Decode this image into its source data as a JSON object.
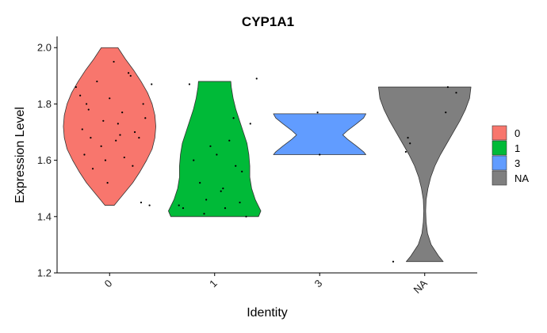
{
  "chart_data": {
    "type": "violin",
    "title": "CYP1A1",
    "xlabel": "Identity",
    "ylabel": "Expression Level",
    "ylim": [
      1.2,
      2.04
    ],
    "yticks": [
      1.2,
      1.4,
      1.6,
      1.8,
      2.0
    ],
    "ytick_labels": [
      "1.2",
      "1.4",
      "1.6",
      "1.8",
      "2.0"
    ],
    "grid": false,
    "legend_position": "right",
    "categories": [
      "0",
      "1",
      "3",
      "NA"
    ],
    "groups": [
      {
        "label": "0",
        "color": "#F8766D",
        "min": 1.44,
        "max": 2.0,
        "profile": [
          [
            1.44,
            0.1
          ],
          [
            1.48,
            0.3
          ],
          [
            1.52,
            0.5
          ],
          [
            1.56,
            0.66
          ],
          [
            1.6,
            0.8
          ],
          [
            1.64,
            0.92
          ],
          [
            1.68,
            0.98
          ],
          [
            1.72,
            1.0
          ],
          [
            1.76,
            0.98
          ],
          [
            1.8,
            0.92
          ],
          [
            1.84,
            0.82
          ],
          [
            1.88,
            0.68
          ],
          [
            1.92,
            0.52
          ],
          [
            1.96,
            0.34
          ],
          [
            2.0,
            0.18
          ]
        ],
        "points": [
          [
            -0.02,
            1.52
          ],
          [
            0.3,
            1.45
          ],
          [
            -0.24,
            1.62
          ],
          [
            0.38,
            1.44
          ],
          [
            -0.16,
            1.57
          ],
          [
            -0.06,
            1.74
          ],
          [
            0.24,
            1.7
          ],
          [
            -0.28,
            1.83
          ],
          [
            0.04,
            1.95
          ],
          [
            0.18,
            1.91
          ],
          [
            -0.2,
            1.78
          ],
          [
            0.28,
            1.68
          ],
          [
            0.08,
            1.73
          ],
          [
            0.14,
            1.61
          ],
          [
            -0.32,
            1.86
          ],
          [
            0.4,
            1.87
          ],
          [
            -0.12,
            1.88
          ],
          [
            0.34,
            1.75
          ],
          [
            -0.04,
            1.6
          ],
          [
            0.22,
            1.58
          ],
          [
            -0.18,
            1.68
          ],
          [
            0.06,
            1.67
          ],
          [
            0.32,
            1.8
          ],
          [
            0.0,
            1.82
          ],
          [
            -0.26,
            1.71
          ],
          [
            0.12,
            1.77
          ],
          [
            0.2,
            1.9
          ],
          [
            -0.08,
            1.65
          ],
          [
            0.1,
            1.69
          ],
          [
            -0.22,
            1.8
          ]
        ]
      },
      {
        "label": "1",
        "color": "#00BA38",
        "min": 1.4,
        "max": 1.88,
        "profile": [
          [
            1.4,
            0.95
          ],
          [
            1.42,
            1.0
          ],
          [
            1.46,
            0.88
          ],
          [
            1.5,
            0.8
          ],
          [
            1.54,
            0.76
          ],
          [
            1.58,
            0.76
          ],
          [
            1.62,
            0.74
          ],
          [
            1.66,
            0.7
          ],
          [
            1.7,
            0.62
          ],
          [
            1.74,
            0.54
          ],
          [
            1.78,
            0.46
          ],
          [
            1.82,
            0.4
          ],
          [
            1.86,
            0.36
          ],
          [
            1.88,
            0.35
          ]
        ],
        "points": [
          [
            0.3,
            1.4
          ],
          [
            -0.08,
            1.46
          ],
          [
            0.06,
            1.49
          ],
          [
            0.24,
            1.45
          ],
          [
            -0.3,
            1.43
          ],
          [
            0.1,
            1.43
          ],
          [
            -0.14,
            1.52
          ],
          [
            0.34,
            1.73
          ],
          [
            0.18,
            1.75
          ],
          [
            -0.2,
            1.6
          ],
          [
            0.02,
            1.62
          ],
          [
            -0.04,
            1.65
          ],
          [
            0.14,
            1.67
          ],
          [
            0.4,
            1.89
          ],
          [
            -0.24,
            1.87
          ],
          [
            0.26,
            1.56
          ],
          [
            -0.1,
            1.41
          ],
          [
            0.08,
            1.5
          ],
          [
            0.2,
            1.58
          ],
          [
            -0.34,
            1.44
          ]
        ]
      },
      {
        "label": "3",
        "color": "#619CFF",
        "min": 1.62,
        "max": 1.77,
        "profile": [
          [
            1.62,
            1.0
          ],
          [
            1.63,
            0.95
          ],
          [
            1.65,
            0.8
          ],
          [
            1.675,
            0.6
          ],
          [
            1.69,
            0.5
          ],
          [
            1.705,
            0.6
          ],
          [
            1.73,
            0.8
          ],
          [
            1.75,
            0.95
          ],
          [
            1.765,
            1.0
          ]
        ],
        "points": [
          [
            -0.02,
            1.77
          ],
          [
            0.0,
            1.62
          ]
        ]
      },
      {
        "label": "NA",
        "color": "#7F7F7F",
        "min": 1.24,
        "max": 1.86,
        "profile": [
          [
            1.24,
            0.4
          ],
          [
            1.26,
            0.3
          ],
          [
            1.3,
            0.14
          ],
          [
            1.34,
            0.06
          ],
          [
            1.38,
            0.03
          ],
          [
            1.42,
            0.02
          ],
          [
            1.46,
            0.03
          ],
          [
            1.5,
            0.07
          ],
          [
            1.54,
            0.13
          ],
          [
            1.58,
            0.22
          ],
          [
            1.62,
            0.34
          ],
          [
            1.66,
            0.48
          ],
          [
            1.7,
            0.62
          ],
          [
            1.74,
            0.76
          ],
          [
            1.78,
            0.88
          ],
          [
            1.82,
            0.97
          ],
          [
            1.86,
            1.0
          ]
        ],
        "points": [
          [
            -0.18,
            1.63
          ],
          [
            -0.14,
            1.66
          ],
          [
            -0.16,
            1.68
          ],
          [
            0.2,
            1.77
          ],
          [
            0.22,
            1.86
          ],
          [
            0.3,
            1.84
          ],
          [
            -0.3,
            1.24
          ]
        ]
      }
    ]
  }
}
